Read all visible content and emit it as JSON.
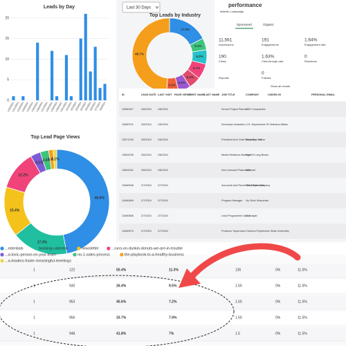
{
  "chart_data": [
    {
      "type": "bar",
      "title": "Leads by Day",
      "color": "#2f8ee5",
      "categories": [
        "1/20/2024",
        "1/21/2024",
        "1/22/2024",
        "1/23/2024",
        "1/24/2024",
        "1/25/2024",
        "1/26/2024",
        "1/27/2024",
        "1/28/2024",
        "1/29/2024",
        "1/30/2024",
        "1/31/2024",
        "2/1/2024",
        "2/2/2024",
        "2/3/2024",
        "2/4/2024",
        "2/5/2024",
        "2/6/2024",
        "2/7/2024",
        "2/8/2024"
      ],
      "values": [
        1,
        0,
        1,
        0,
        0,
        14,
        0,
        0,
        12,
        1,
        0,
        11,
        1,
        0,
        15,
        21,
        7,
        13,
        3,
        4
      ],
      "ylim": [
        0,
        21
      ],
      "yticks": [
        0,
        5,
        10,
        15,
        20
      ],
      "grid": true
    },
    {
      "type": "donut",
      "title": "Top Leads by Industry",
      "values": [
        17.5,
        5.1,
        6.2,
        6.7,
        5.2,
        5.3,
        5.3,
        48.7
      ],
      "value_labels": [
        "17.5%",
        "5.1%",
        "6.2%",
        "6.7%",
        "5.2%",
        "5.3%",
        "5.3%",
        "48.7%"
      ],
      "colors": [
        "#2f8ee5",
        "#3cc47c",
        "#27c1c9",
        "#f0437a",
        "#e24b6b",
        "#9b59d0",
        "#f25f3a",
        "#f59e1b"
      ]
    },
    {
      "type": "donut",
      "title": "Top Lead Page Views",
      "categories": [
        "...edentials",
        "booking-calendar",
        "newsletter",
        "...runs-on-dunkin-donuts-we-are-in-trouble",
        "...a-toxic-person-on-your-team",
        "no-1-sales-process",
        "the-playbook-to-a-healthy-business",
        "...a-leaders-foster-meaningful-meetings"
      ],
      "values": [
        46.9,
        17.3,
        15.4,
        12.2,
        3.1,
        2.6,
        1.4,
        1.1
      ],
      "value_labels": [
        "46.9%",
        "17.3%",
        "15.4%",
        "12.2%",
        "3.1%",
        "2.6%",
        "1.4%",
        "1.1%"
      ],
      "colors": [
        "#2f8ee5",
        "#1fbf9f",
        "#f5c21b",
        "#f0437a",
        "#7b5cd6",
        "#3cc47c",
        "#f59e1b",
        "#e9d84a"
      ]
    }
  ],
  "filter": "Last 30 Days",
  "linkedin": {
    "title": "performance",
    "subtitle": "linkedin | campaign",
    "tabs": [
      "Sponsored",
      "Organic"
    ],
    "stats": [
      [
        "11,561",
        "Impressions"
      ],
      [
        "191",
        "Engagements"
      ],
      [
        "1.64%",
        "Engagement rate"
      ],
      [
        "190",
        "Clicks"
      ],
      [
        "1.63%",
        "Click-through rate"
      ],
      [
        "0",
        "Reactions"
      ],
      [
        "",
        "Reposts"
      ],
      [
        "0",
        "Follows"
      ]
    ],
    "link": "Show all results"
  },
  "lead_table": {
    "headers": [
      "ID",
      "LEAD DATE",
      "LAST VISIT",
      "PAGE VIEWS",
      "FIRST NAME",
      "LAST NAME",
      "JOB TITLE",
      "COMPANY",
      "LINKED IN",
      "PERSONAL EMAIL"
    ],
    "rows": [
      [
        "13580327",
        "2/8/2024",
        "2/8/2024",
        "Senior Project Planner",
        "CSO Companies"
      ],
      [
        "13580701",
        "2/8/2024",
        "2/8/2024",
        "Developer Assistant",
        "U.S. Department Of Veterans Affairs"
      ],
      [
        "13571209",
        "2/8/2024",
        "2/8/2024",
        "President And Chief Executive Officer",
        "Birds Eye, Inc"
      ],
      [
        "13562235",
        "2/8/2024",
        "2/8/2024",
        "Media Relations Manager",
        "Port Of Long Beach"
      ],
      [
        "13562251",
        "2/8/2024",
        "2/8/2024",
        "Not Licensed Pharmacist",
        "Walmart"
      ],
      [
        "13480008",
        "2/7/2024",
        "2/7/2024",
        "Accounts And Receivables Specialist",
        "The Meats Company"
      ],
      [
        "13480669",
        "2/7/2024",
        "2/7/2024",
        "Program Manager",
        "Hy Clinic Wisconsin"
      ],
      [
        "13480656",
        "2/7/2024",
        "2/7/2024",
        "Lead Programmer And Analyst",
        "Cox"
      ],
      [
        "13480970",
        "2/7/2024",
        "2/7/2024",
        "Producer Supervisor",
        "Coherus Polytechnic State University"
      ]
    ]
  },
  "email_table": {
    "rows": [
      [
        "1",
        "122",
        "50.4%",
        "11.3%",
        "135",
        "0%",
        "11.5%"
      ],
      [
        "1",
        "930",
        "26.4%",
        "9.5%",
        "1.55",
        "0%",
        "11.5%"
      ],
      [
        "1",
        "953",
        "45.6%",
        "7.2%",
        "1.55",
        "0%",
        "11.5%"
      ],
      [
        "1",
        "956",
        "33.7%",
        "7.9%",
        "1.55",
        "0%",
        "11.5%"
      ],
      [
        "1",
        "948",
        "41.8%",
        "7%",
        "1.5",
        "0%",
        "11.5%"
      ]
    ]
  }
}
